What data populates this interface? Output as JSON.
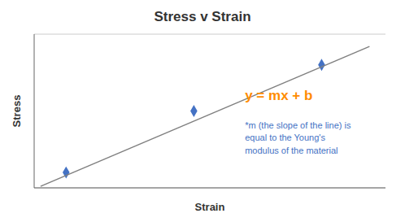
{
  "chart_data": {
    "type": "scatter",
    "title": "Stress v Strain",
    "x_label": "Strain",
    "y_label": "Stress",
    "series": [
      {
        "type": "scatter",
        "x": [
          1,
          5,
          9
        ],
        "values": [
          1,
          5,
          8
        ],
        "color": "#4472C4",
        "marker": "diamond"
      },
      {
        "type": "line",
        "x": [
          0.2,
          10.5
        ],
        "values": [
          0.1,
          9.2
        ],
        "color": "#808080"
      }
    ],
    "annotations": [
      {
        "text": "y = mx + b",
        "color": "#FF8C00"
      },
      {
        "text": "*m (the slope of the line) is\nequal to the Young's\nmodulus of the material",
        "color": "#4472C4"
      }
    ],
    "xlim": [
      0,
      11
    ],
    "ylim": [
      0,
      10
    ],
    "xticks": [],
    "yticks": [
      2,
      4,
      6,
      8
    ],
    "tick_labels": false,
    "grid": "y"
  }
}
